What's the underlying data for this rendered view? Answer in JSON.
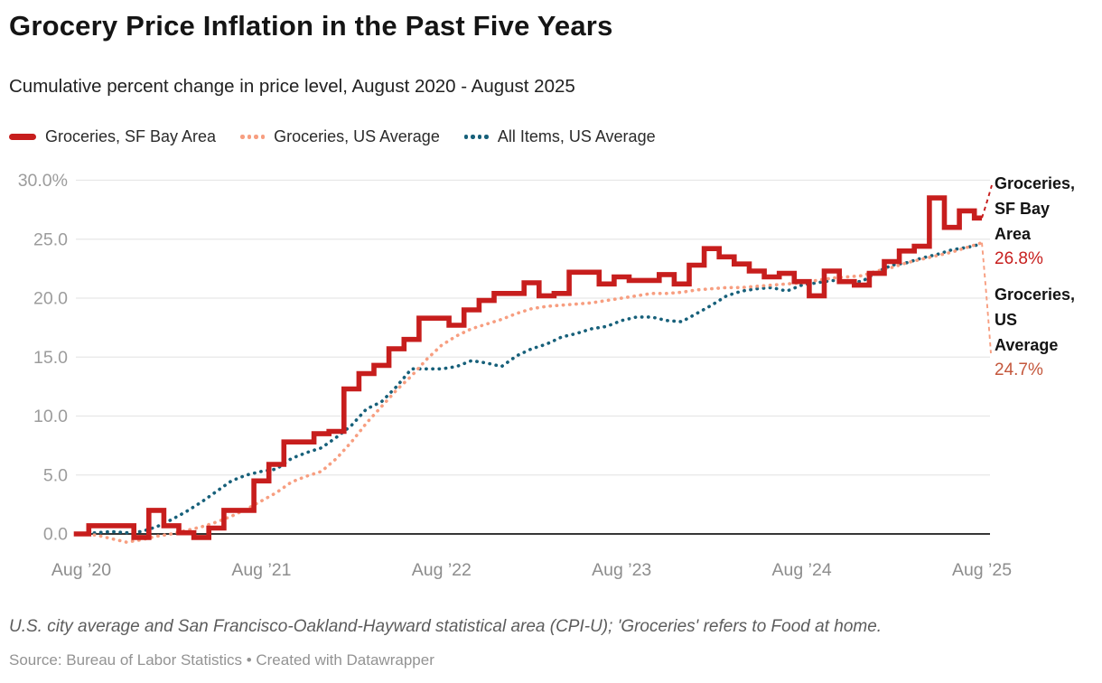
{
  "header": {
    "title": "Grocery Price Inflation in the Past Five Years",
    "subtitle": "Cumulative percent change in price level, August 2020 - August 2025"
  },
  "legend": {
    "items": [
      {
        "label": "Groceries, SF Bay Area",
        "color": "#c71e1d",
        "swatch": "solid-line"
      },
      {
        "label": "Groceries, US Average",
        "color": "#f79e80",
        "swatch": "dotted-line"
      },
      {
        "label": "All Items, US Average",
        "color": "#17607a",
        "swatch": "dotted-line"
      }
    ]
  },
  "end_labels": [
    {
      "label": "Groceries, SF Bay Area",
      "value": "26.8%",
      "label_color": "#141414",
      "value_color": "#c71e1d"
    },
    {
      "label": "Groceries, US Average",
      "value": "24.7%",
      "label_color": "#141414",
      "value_color": "#c4573c"
    }
  ],
  "footer": {
    "note": "U.S. city average and San Francisco-Oakland-Hayward statistical area (CPI-U); 'Groceries' refers to Food at home.",
    "source": "Source: Bureau of Labor Statistics • Created with Datawrapper"
  },
  "chart_data": {
    "type": "line",
    "title": "Grocery Price Inflation in the Past Five Years",
    "x_unit": "month",
    "x_range": [
      "Aug 2020",
      "Aug 2025"
    ],
    "ylim": [
      -1,
      30
    ],
    "grid": true,
    "x_tick_labels": [
      "Aug ’20",
      "Aug ’21",
      "Aug ’22",
      "Aug ’23",
      "Aug ’24",
      "Aug ’25"
    ],
    "x_tick_month_index": [
      0,
      12,
      24,
      36,
      48,
      60
    ],
    "y_ticks": [
      {
        "value": 30,
        "label": "30.0%"
      },
      {
        "value": 25,
        "label": "25.0"
      },
      {
        "value": 20,
        "label": "20.0"
      },
      {
        "value": 15,
        "label": "15.0"
      },
      {
        "value": 10,
        "label": "10.0"
      },
      {
        "value": 5,
        "label": "5.0"
      },
      {
        "value": 0,
        "label": "0.0"
      }
    ],
    "series": [
      {
        "name": "Groceries, SF Bay Area",
        "style": "step",
        "color": "#c71e1d",
        "end_value": 26.8,
        "values": [
          0.0,
          0.7,
          0.7,
          0.7,
          -0.3,
          2.0,
          0.7,
          0.1,
          -0.3,
          0.5,
          2.0,
          2.0,
          4.5,
          5.9,
          7.8,
          7.8,
          8.5,
          8.7,
          12.3,
          13.6,
          14.3,
          15.7,
          16.5,
          18.3,
          18.3,
          17.7,
          19.0,
          19.8,
          20.4,
          20.4,
          21.3,
          20.2,
          20.4,
          22.2,
          22.2,
          21.2,
          21.8,
          21.5,
          21.5,
          22.0,
          21.2,
          22.8,
          24.2,
          23.5,
          22.9,
          22.3,
          21.8,
          22.1,
          21.4,
          20.2,
          22.3,
          21.4,
          21.1,
          22.1,
          23.1,
          24.0,
          24.4,
          28.5,
          26.0,
          27.4,
          26.8
        ]
      },
      {
        "name": "Groceries, US Average",
        "style": "dotted",
        "color": "#f79e80",
        "end_value": 24.7,
        "values": [
          0.0,
          -0.1,
          -0.4,
          -0.7,
          -0.5,
          -0.2,
          0.0,
          0.3,
          0.6,
          1.0,
          1.5,
          2.1,
          2.8,
          3.5,
          4.4,
          4.9,
          5.3,
          6.4,
          7.8,
          9.4,
          10.8,
          12.2,
          13.4,
          14.8,
          16.0,
          16.8,
          17.4,
          17.8,
          18.2,
          18.7,
          19.1,
          19.3,
          19.4,
          19.5,
          19.6,
          19.8,
          20.0,
          20.2,
          20.4,
          20.4,
          20.5,
          20.7,
          20.8,
          20.9,
          20.9,
          21.0,
          21.1,
          21.2,
          21.3,
          21.5,
          21.7,
          21.8,
          21.9,
          22.3,
          22.6,
          23.0,
          23.3,
          23.6,
          23.9,
          24.3,
          24.7
        ]
      },
      {
        "name": "All Items, US Average",
        "style": "dotted",
        "color": "#17607a",
        "end_value": 24.6,
        "values": [
          0.0,
          0.1,
          0.2,
          0.1,
          0.2,
          0.6,
          1.2,
          1.9,
          2.7,
          3.6,
          4.5,
          5.0,
          5.3,
          5.5,
          6.4,
          6.9,
          7.3,
          8.2,
          9.2,
          10.6,
          11.2,
          12.5,
          14.0,
          14.0,
          14.0,
          14.2,
          14.7,
          14.5,
          14.2,
          15.1,
          15.7,
          16.1,
          16.7,
          17.0,
          17.4,
          17.6,
          18.1,
          18.4,
          18.4,
          18.1,
          18.0,
          18.7,
          19.4,
          20.2,
          20.6,
          20.8,
          20.9,
          20.6,
          21.1,
          21.3,
          21.5,
          21.4,
          21.4,
          22.2,
          22.8,
          23.0,
          23.4,
          23.7,
          24.1,
          24.3,
          24.6
        ]
      }
    ]
  }
}
